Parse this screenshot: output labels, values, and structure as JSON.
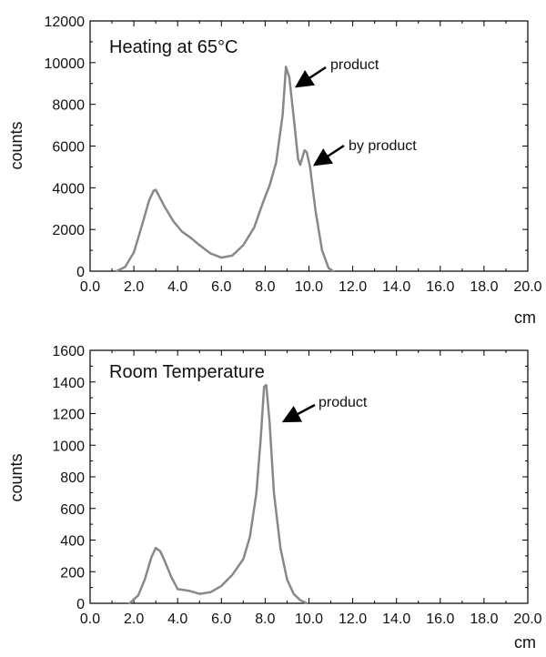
{
  "figure": {
    "background": "#ffffff",
    "line_color": "#888888",
    "axis_color": "#000000"
  },
  "chart_data": [
    {
      "type": "line",
      "title": "Heating at 65°C",
      "xlabel": "cm",
      "ylabel": "counts",
      "xlim": [
        0,
        20
      ],
      "ylim": [
        0,
        12000
      ],
      "grid": false,
      "x_ticks": [
        "0.0",
        "2.0",
        "4.0",
        "6.0",
        "8.0",
        "10.0",
        "12.0",
        "14.0",
        "16.0",
        "18.0",
        "20.0"
      ],
      "y_ticks": [
        "0",
        "2000",
        "4000",
        "6000",
        "8000",
        "10000",
        "12000"
      ],
      "series": [
        {
          "x": [
            1.2,
            1.6,
            2.0,
            2.4,
            2.7,
            2.9,
            3.0,
            3.1,
            3.4,
            3.8,
            4.2,
            4.6,
            5.0,
            5.5,
            6.0,
            6.5,
            7.0,
            7.5,
            7.9,
            8.2,
            8.5,
            8.8,
            8.95,
            9.1,
            9.3,
            9.5,
            9.6,
            9.8,
            9.9,
            10.05,
            10.3,
            10.6,
            10.9,
            11.1
          ],
          "y": [
            0,
            200,
            900,
            2300,
            3400,
            3850,
            3900,
            3700,
            3100,
            2400,
            1900,
            1600,
            1250,
            850,
            650,
            750,
            1250,
            2100,
            3300,
            4100,
            5200,
            7500,
            9800,
            9300,
            7400,
            5400,
            5100,
            5800,
            5700,
            5000,
            2900,
            1000,
            150,
            0
          ]
        }
      ],
      "annotations": [
        {
          "text": "product",
          "x": 9.0,
          "y": 9800
        },
        {
          "text": "by product",
          "x": 9.9,
          "y": 5800
        }
      ]
    },
    {
      "type": "line",
      "title": "Room Temperature",
      "xlabel": "cm",
      "ylabel": "counts",
      "xlim": [
        0,
        20
      ],
      "ylim": [
        0,
        1600
      ],
      "grid": false,
      "x_ticks": [
        "0.0",
        "2.0",
        "4.0",
        "6.0",
        "8.0",
        "10.0",
        "12.0",
        "14.0",
        "16.0",
        "18.0",
        "20.0"
      ],
      "y_ticks": [
        "0",
        "200",
        "400",
        "600",
        "800",
        "1000",
        "1200",
        "1400",
        "1600"
      ],
      "series": [
        {
          "x": [
            1.8,
            2.2,
            2.5,
            2.8,
            3.0,
            3.2,
            3.4,
            3.7,
            4.0,
            4.5,
            5.0,
            5.5,
            6.0,
            6.5,
            7.0,
            7.3,
            7.6,
            7.8,
            7.95,
            8.05,
            8.2,
            8.4,
            8.7,
            9.0,
            9.3,
            9.6,
            9.9
          ],
          "y": [
            0,
            50,
            150,
            290,
            350,
            330,
            270,
            170,
            90,
            80,
            60,
            70,
            110,
            180,
            280,
            420,
            700,
            1050,
            1370,
            1380,
            1150,
            700,
            350,
            150,
            60,
            20,
            0
          ]
        }
      ],
      "annotations": [
        {
          "text": "product",
          "x": 8.1,
          "y": 1370
        }
      ]
    }
  ]
}
